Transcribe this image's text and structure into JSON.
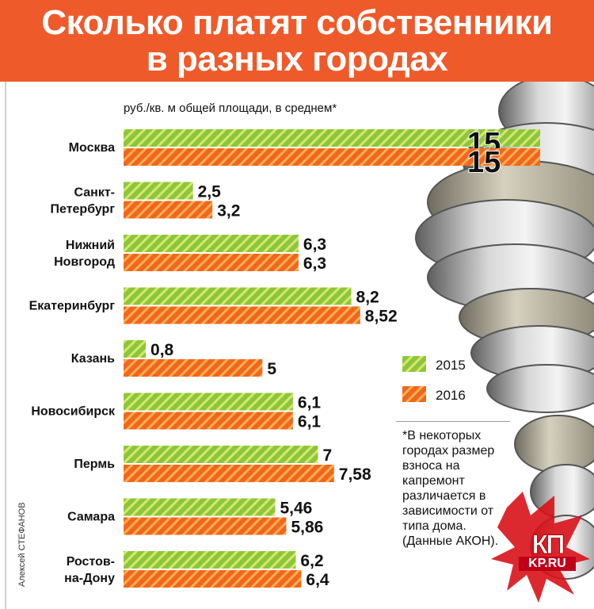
{
  "header": {
    "title_line1": "Сколько платят собственники",
    "title_line2": "в разных городах",
    "bg_color": "#ef5a2a"
  },
  "subtitle": "руб./кв. м  общей площади, в среднем*",
  "legend": {
    "items": [
      {
        "label": "2015",
        "color": "#8cc63f"
      },
      {
        "label": "2016",
        "color": "#f26522"
      }
    ]
  },
  "footnote": "*В некоторых городах размер взноса на капремонт различается в зависимости от типа дома. (Данные АКОН).",
  "author": "Алексей СТЕФАНОВ",
  "logo": {
    "line1": "КП",
    "line2": "KP.RU"
  },
  "chart_data": {
    "type": "bar",
    "orientation": "horizontal",
    "categories": [
      [
        "Москва"
      ],
      [
        "Санкт-",
        "Петербург"
      ],
      [
        "Нижний",
        "Новгород"
      ],
      [
        "Екатеринбург"
      ],
      [
        "Казань"
      ],
      [
        "Новосибирск"
      ],
      [
        "Пермь"
      ],
      [
        "Самара"
      ],
      [
        "Ростов-",
        "на-Дону"
      ]
    ],
    "series": [
      {
        "name": "2015",
        "values": [
          15,
          2.5,
          6.3,
          8.2,
          0.8,
          6.1,
          7,
          5.46,
          6.2
        ],
        "labels": [
          "15",
          "2,5",
          "6,3",
          "8,2",
          "0,8",
          "6,1",
          "7",
          "5,46",
          "6,2"
        ],
        "color": "#8cc63f",
        "stripe": "#d7e86a"
      },
      {
        "name": "2016",
        "values": [
          15,
          3.2,
          6.3,
          8.52,
          5,
          6.1,
          7.58,
          5.86,
          6.4
        ],
        "labels": [
          "15",
          "3,2",
          "6,3",
          "8,52",
          "5",
          "6,1",
          "7,58",
          "5,86",
          "6,4"
        ],
        "color": "#f26522",
        "stripe": "#f7b24a"
      }
    ],
    "xlim": [
      0,
      15
    ],
    "grid": false,
    "legend_position": "right"
  }
}
